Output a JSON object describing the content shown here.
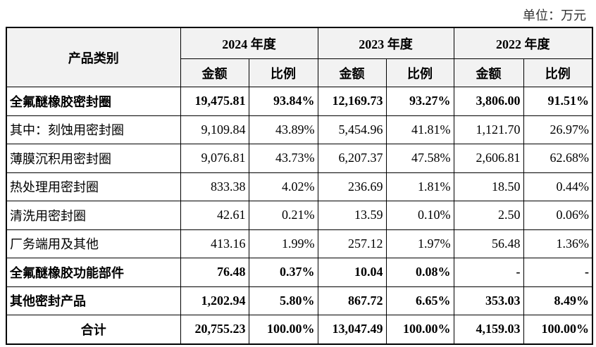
{
  "header": {
    "unit": "单位：万元"
  },
  "table": {
    "header_top": [
      "产品类别",
      "2024 年度",
      "2023 年度",
      "2022 年度"
    ],
    "header_sub": [
      "金额",
      "比例",
      "金额",
      "比例",
      "金额",
      "比例"
    ],
    "rows": [
      [
        "全氟醚橡胶密封圈",
        "19,475.81",
        "93.84%",
        "12,169.73",
        "93.27%",
        "3,806.00",
        "91.51%"
      ],
      [
        "其中：刻蚀用密封圈",
        "9,109.84",
        "43.89%",
        "5,454.96",
        "41.81%",
        "1,121.70",
        "26.97%"
      ],
      [
        "薄膜沉积用密封圈",
        "9,076.81",
        "43.73%",
        "6,207.37",
        "47.58%",
        "2,606.81",
        "62.68%"
      ],
      [
        "热处理用密封圈",
        "833.38",
        "4.02%",
        "236.69",
        "1.81%",
        "18.50",
        "0.44%"
      ],
      [
        "清洗用密封圈",
        "42.61",
        "0.21%",
        "13.59",
        "0.10%",
        "2.50",
        "0.06%"
      ],
      [
        "厂务端用及其他",
        "413.16",
        "1.99%",
        "257.12",
        "1.97%",
        "56.48",
        "1.36%"
      ],
      [
        "全氟醚橡胶功能部件",
        "76.48",
        "0.37%",
        "10.04",
        "0.08%",
        "-",
        "-"
      ],
      [
        "其他密封产品",
        "1,202.94",
        "5.80%",
        "867.72",
        "6.65%",
        "353.03",
        "8.49%"
      ],
      [
        "合计",
        "20,755.23",
        "100.00%",
        "13,047.49",
        "100.00%",
        "4,159.03",
        "100.00%"
      ]
    ]
  }
}
